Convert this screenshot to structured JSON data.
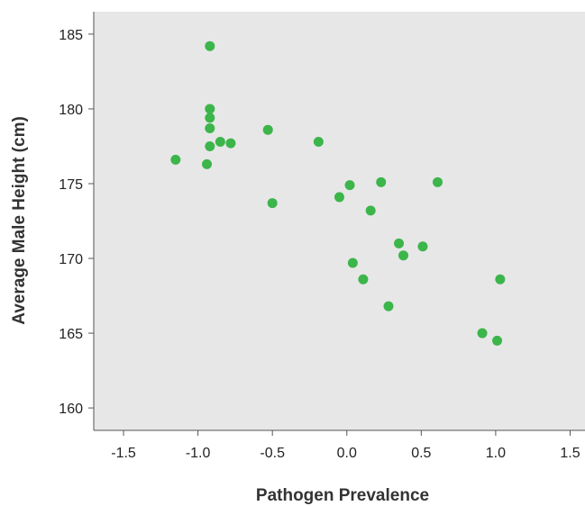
{
  "chart_data": {
    "type": "scatter",
    "title": "",
    "xlabel": "Pathogen Prevalence",
    "ylabel": "Average Male Height (cm)",
    "xlim": [
      -1.7,
      1.6
    ],
    "ylim": [
      158.5,
      186.5
    ],
    "xticks": [
      "-1.5",
      "-1.0",
      "-0.5",
      "0.0",
      "0.5",
      "1.0",
      "1.5"
    ],
    "yticks": [
      "160",
      "165",
      "170",
      "175",
      "180",
      "185"
    ],
    "grid": false,
    "legend": "none",
    "colors": {
      "plot_background": "#e7e7e8",
      "point": "#3cb54a",
      "axis": "#555555"
    },
    "points": [
      {
        "x": -0.92,
        "y": 184.2
      },
      {
        "x": -0.92,
        "y": 180.0
      },
      {
        "x": -0.92,
        "y": 179.4
      },
      {
        "x": -0.92,
        "y": 178.7
      },
      {
        "x": -0.92,
        "y": 177.5
      },
      {
        "x": -0.85,
        "y": 177.8
      },
      {
        "x": -0.78,
        "y": 177.7
      },
      {
        "x": -0.94,
        "y": 176.3
      },
      {
        "x": -1.15,
        "y": 176.6
      },
      {
        "x": -0.53,
        "y": 178.6
      },
      {
        "x": -0.5,
        "y": 173.7
      },
      {
        "x": -0.19,
        "y": 177.8
      },
      {
        "x": -0.05,
        "y": 174.1
      },
      {
        "x": 0.02,
        "y": 174.9
      },
      {
        "x": 0.23,
        "y": 175.1
      },
      {
        "x": 0.16,
        "y": 173.2
      },
      {
        "x": 0.61,
        "y": 175.1
      },
      {
        "x": 0.35,
        "y": 171.0
      },
      {
        "x": 0.38,
        "y": 170.2
      },
      {
        "x": 0.51,
        "y": 170.8
      },
      {
        "x": 0.04,
        "y": 169.7
      },
      {
        "x": 0.11,
        "y": 168.6
      },
      {
        "x": 0.28,
        "y": 166.8
      },
      {
        "x": 1.03,
        "y": 168.6
      },
      {
        "x": 0.91,
        "y": 165.0
      },
      {
        "x": 1.01,
        "y": 164.5
      }
    ]
  }
}
